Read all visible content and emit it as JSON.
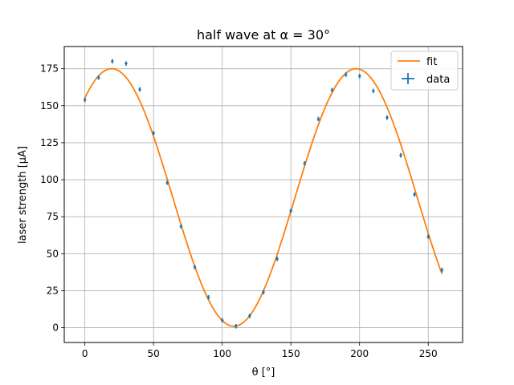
{
  "chart_data": {
    "type": "scatter",
    "title": "half wave at α = 30°",
    "xlabel": "θ [°]",
    "ylabel": "laser strength [μA]",
    "xlim": [
      -15,
      275
    ],
    "ylim": [
      -10,
      190
    ],
    "xticks": [
      0,
      50,
      100,
      150,
      200,
      250
    ],
    "yticks": [
      0,
      25,
      50,
      75,
      100,
      125,
      150,
      175
    ],
    "grid": true,
    "legend_position": "top-right",
    "series": [
      {
        "name": "fit",
        "kind": "line",
        "color": "#ff7f0e",
        "model": {
          "offset": 88,
          "amplitude": 87,
          "period_deg": 178,
          "phase_deg": 19.5
        },
        "x_range": [
          0,
          260
        ]
      },
      {
        "name": "data",
        "kind": "errorbar",
        "color": "#1f77b4",
        "x": [
          0,
          10,
          20,
          30,
          40,
          50,
          60,
          70,
          80,
          90,
          100,
          110,
          120,
          130,
          140,
          150,
          160,
          170,
          180,
          190,
          200,
          210,
          220,
          230,
          240,
          250,
          260
        ],
        "y": [
          154,
          169,
          180,
          178.5,
          161,
          131.5,
          98,
          68.5,
          41,
          20.5,
          5,
          1,
          8,
          24,
          46.5,
          79,
          111,
          141,
          160.5,
          171,
          170,
          160,
          142,
          116.5,
          90,
          61.5,
          39
        ],
        "xerr": 1,
        "yerr": 1.5
      }
    ]
  }
}
